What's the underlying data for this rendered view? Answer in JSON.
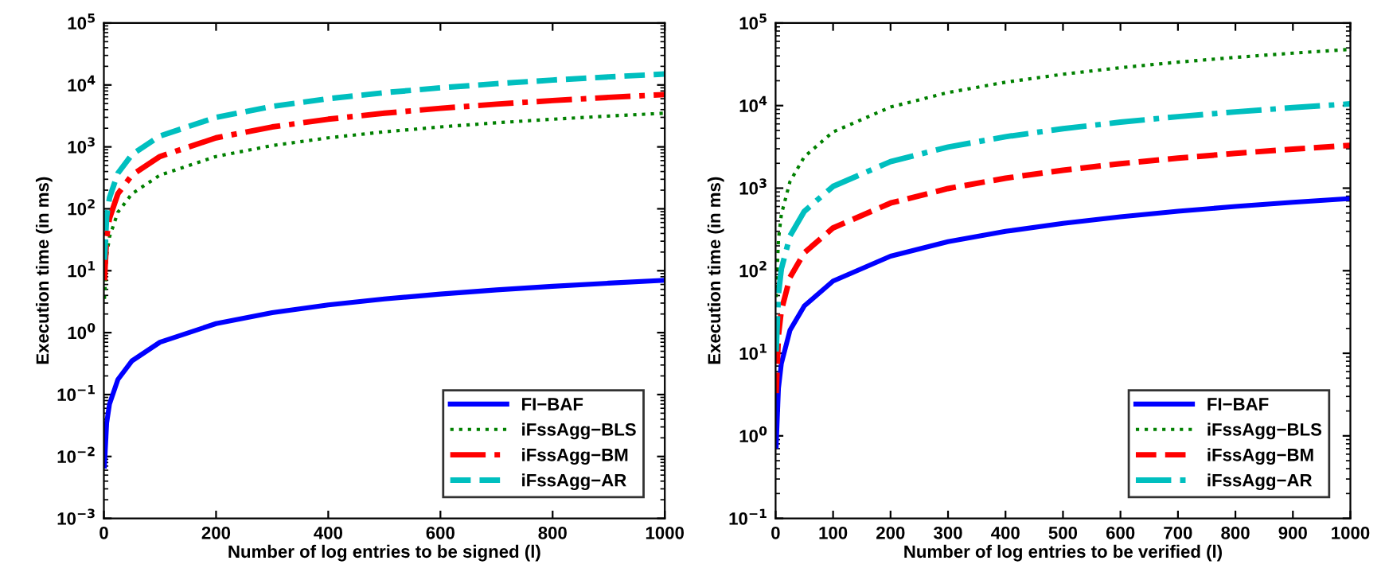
{
  "chart_data": [
    {
      "type": "line",
      "xlabel": "Number of log entries to be signed (l)",
      "ylabel": "Execution time (in ms)",
      "x": [
        1,
        5,
        10,
        25,
        50,
        100,
        200,
        300,
        400,
        500,
        600,
        700,
        800,
        900,
        1000
      ],
      "series": [
        {
          "name": "FI−BAF",
          "color": "#0000ff",
          "line_style": "solid",
          "values": [
            0.007,
            0.035,
            0.07,
            0.175,
            0.35,
            0.7,
            1.4,
            2.1,
            2.8,
            3.5,
            4.2,
            4.9,
            5.6,
            6.3,
            7
          ]
        },
        {
          "name": "iFssAgg−BLS",
          "color": "#008000",
          "line_style": "dotted",
          "values": [
            3.5,
            17.5,
            35,
            88,
            175,
            350,
            700,
            1050,
            1400,
            1750,
            2100,
            2450,
            2800,
            3150,
            3500
          ]
        },
        {
          "name": "iFssAgg−BM",
          "color": "#ff0000",
          "line_style": "dashdot",
          "values": [
            7,
            35,
            70,
            175,
            350,
            700,
            1400,
            2100,
            2800,
            3500,
            4200,
            4900,
            5600,
            6300,
            7000
          ]
        },
        {
          "name": "iFssAgg−AR",
          "color": "#00bfbf",
          "line_style": "dashed",
          "values": [
            15,
            75,
            150,
            375,
            750,
            1500,
            3000,
            4500,
            6000,
            7500,
            9000,
            10500,
            12000,
            13500,
            15000
          ]
        }
      ],
      "log": "y",
      "xlim": [
        0,
        1000
      ],
      "xticks": [
        0,
        200,
        400,
        600,
        800,
        1000
      ],
      "ylim": [
        0.001,
        100000
      ],
      "yticks": [
        {
          "value": 0.001,
          "label": "10$^{−3}$"
        },
        {
          "value": 0.01,
          "label": "10$^{−2}$"
        },
        {
          "value": 0.1,
          "label": "10$^{−1}$"
        },
        {
          "value": 1,
          "label": "10$^{0}$"
        },
        {
          "value": 10,
          "label": "10$^{1}$"
        },
        {
          "value": 100,
          "label": "10$^{2}$"
        },
        {
          "value": 1000,
          "label": "10$^{3}$"
        },
        {
          "value": 10000,
          "label": "10$^{4}$"
        },
        {
          "value": 100000,
          "label": "10$^{5}$"
        }
      ],
      "grid": false,
      "legend": "bottom right"
    },
    {
      "type": "line",
      "xlabel": "Number of log entries to be verified (l)",
      "ylabel": "Execution time (in ms)",
      "x": [
        1,
        5,
        10,
        25,
        50,
        100,
        200,
        300,
        400,
        500,
        600,
        700,
        800,
        900,
        1000
      ],
      "series": [
        {
          "name": "FI−BAF",
          "color": "#0000ff",
          "line_style": "solid",
          "values": [
            0.75,
            3.75,
            7.5,
            19,
            37.5,
            75,
            150,
            225,
            300,
            375,
            450,
            525,
            600,
            675,
            750
          ]
        },
        {
          "name": "iFssAgg−BLS",
          "color": "#008000",
          "line_style": "dotted",
          "values": [
            48,
            240,
            480,
            1200,
            2400,
            4800,
            9600,
            14400,
            19200,
            24000,
            28800,
            33600,
            38400,
            43200,
            48000
          ]
        },
        {
          "name": "iFssAgg−BM",
          "color": "#ff0000",
          "line_style": "dashed",
          "values": [
            3.3,
            16.5,
            33,
            83,
            165,
            330,
            660,
            990,
            1320,
            1650,
            1980,
            2310,
            2640,
            2970,
            3300
          ]
        },
        {
          "name": "iFssAgg−AR",
          "color": "#00bfbf",
          "line_style": "dashdot",
          "values": [
            10.5,
            52.5,
            105,
            263,
            525,
            1050,
            2100,
            3150,
            4200,
            5250,
            6300,
            7350,
            8400,
            9450,
            10500
          ]
        }
      ],
      "log": "y",
      "xlim": [
        0,
        1000
      ],
      "xticks": [
        0,
        100,
        200,
        300,
        400,
        500,
        600,
        700,
        800,
        900,
        1000
      ],
      "ylim": [
        0.1,
        100000
      ],
      "yticks": [
        {
          "value": 0.1,
          "label": "10$^{−1}$"
        },
        {
          "value": 1,
          "label": "10$^{0}$"
        },
        {
          "value": 10,
          "label": "10$^{1}$"
        },
        {
          "value": 100,
          "label": "10$^{2}$"
        },
        {
          "value": 1000,
          "label": "10$^{3}$"
        },
        {
          "value": 10000,
          "label": "10$^{4}$"
        },
        {
          "value": 100000,
          "label": "10$^{5}$"
        }
      ],
      "grid": false,
      "legend": "bottom right"
    }
  ]
}
